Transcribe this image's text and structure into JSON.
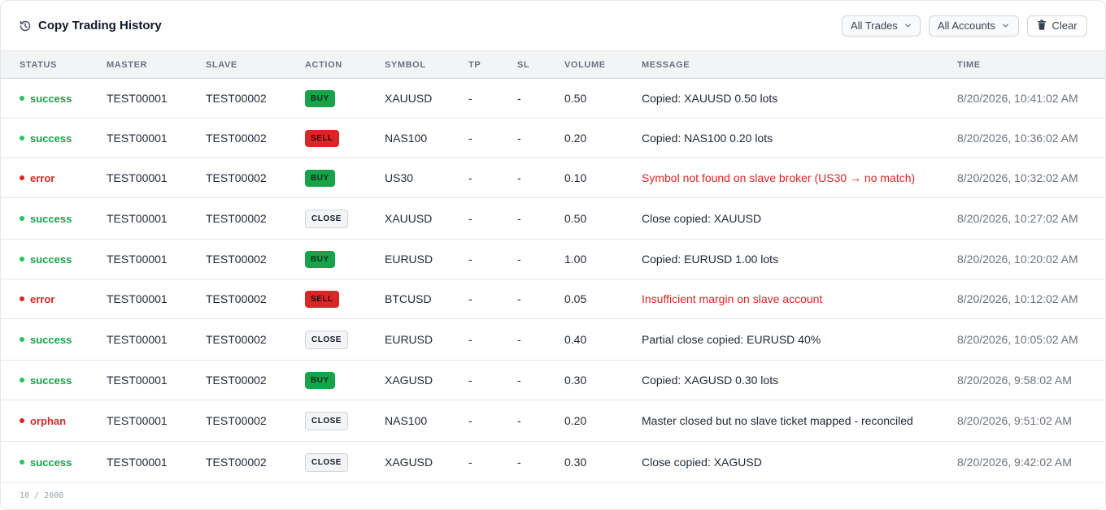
{
  "header": {
    "title": "Copy Trading History",
    "filter_trades": "All Trades",
    "filter_accounts": "All Accounts",
    "clear_label": "Clear"
  },
  "columns": {
    "status": "STATUS",
    "master": "MASTER",
    "slave": "SLAVE",
    "action": "ACTION",
    "symbol": "SYMBOL",
    "tp": "TP",
    "sl": "SL",
    "volume": "VOLUME",
    "message": "MESSAGE",
    "time": "TIME"
  },
  "rows": [
    {
      "status": "success",
      "master": "TEST00001",
      "slave": "TEST00002",
      "action": "BUY",
      "symbol": "XAUUSD",
      "tp": "-",
      "sl": "-",
      "volume": "0.50",
      "message": "Copied: XAUUSD 0.50 lots",
      "time": "8/20/2026, 10:41:02 AM"
    },
    {
      "status": "success",
      "master": "TEST00001",
      "slave": "TEST00002",
      "action": "SELL",
      "symbol": "NAS100",
      "tp": "-",
      "sl": "-",
      "volume": "0.20",
      "message": "Copied: NAS100 0.20 lots",
      "time": "8/20/2026, 10:36:02 AM"
    },
    {
      "status": "error",
      "master": "TEST00001",
      "slave": "TEST00002",
      "action": "BUY",
      "symbol": "US30",
      "tp": "-",
      "sl": "-",
      "volume": "0.10",
      "message": "Symbol not found on slave broker (US30 → no match)",
      "time": "8/20/2026, 10:32:02 AM"
    },
    {
      "status": "success",
      "master": "TEST00001",
      "slave": "TEST00002",
      "action": "CLOSE",
      "symbol": "XAUUSD",
      "tp": "-",
      "sl": "-",
      "volume": "0.50",
      "message": "Close copied: XAUUSD",
      "time": "8/20/2026, 10:27:02 AM"
    },
    {
      "status": "success",
      "master": "TEST00001",
      "slave": "TEST00002",
      "action": "BUY",
      "symbol": "EURUSD",
      "tp": "-",
      "sl": "-",
      "volume": "1.00",
      "message": "Copied: EURUSD 1.00 lots",
      "time": "8/20/2026, 10:20:02 AM"
    },
    {
      "status": "error",
      "master": "TEST00001",
      "slave": "TEST00002",
      "action": "SELL",
      "symbol": "BTCUSD",
      "tp": "-",
      "sl": "-",
      "volume": "0.05",
      "message": "Insufficient margin on slave account",
      "time": "8/20/2026, 10:12:02 AM"
    },
    {
      "status": "success",
      "master": "TEST00001",
      "slave": "TEST00002",
      "action": "CLOSE",
      "symbol": "EURUSD",
      "tp": "-",
      "sl": "-",
      "volume": "0.40",
      "message": "Partial close copied: EURUSD 40%",
      "time": "8/20/2026, 10:05:02 AM"
    },
    {
      "status": "success",
      "master": "TEST00001",
      "slave": "TEST00002",
      "action": "BUY",
      "symbol": "XAGUSD",
      "tp": "-",
      "sl": "-",
      "volume": "0.30",
      "message": "Copied: XAGUSD 0.30 lots",
      "time": "8/20/2026, 9:58:02 AM"
    },
    {
      "status": "orphan",
      "master": "TEST00001",
      "slave": "TEST00002",
      "action": "CLOSE",
      "symbol": "NAS100",
      "tp": "-",
      "sl": "-",
      "volume": "0.20",
      "message": "Master closed but no slave ticket mapped - reconciled",
      "time": "8/20/2026, 9:51:02 AM"
    },
    {
      "status": "success",
      "master": "TEST00001",
      "slave": "TEST00002",
      "action": "CLOSE",
      "symbol": "XAGUSD",
      "tp": "-",
      "sl": "-",
      "volume": "0.30",
      "message": "Close copied: XAGUSD",
      "time": "8/20/2026, 9:42:02 AM"
    }
  ],
  "footer": {
    "count": "10 / 2000"
  },
  "icons": {
    "title": "history-icon",
    "dropdown": "chevron-down-icon",
    "clear": "trash-icon"
  },
  "colors": {
    "success": "#16a34a",
    "error": "#dc2626",
    "buy": "#16a34a",
    "sell": "#dc2626"
  }
}
